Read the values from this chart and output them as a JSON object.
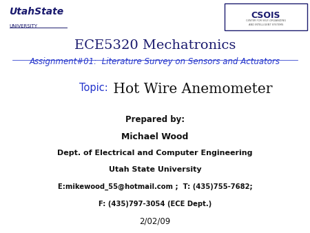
{
  "title_line1": "ECE5320 Mechatronics",
  "title_line2": "Assignment#01:  Literature Survey on Sensors and Actuators",
  "topic_label": "Topic:",
  "topic_text": " Hot Wire Anemometer",
  "prepared_by": "Prepared by:",
  "author": "Michael Wood",
  "dept": "Dept. of Electrical and Computer Engineering",
  "university": "Utah State University",
  "contact": "E:mikewood_55@hotmail.com ;  T: (435)755-7682;",
  "fax": "F: (435)797-3054 (ECE Dept.)",
  "date": "2/02/09",
  "bg_color": "#ffffff",
  "dark_blue": "#1a1a6e",
  "blue_link": "#2233cc",
  "text_black": "#111111"
}
